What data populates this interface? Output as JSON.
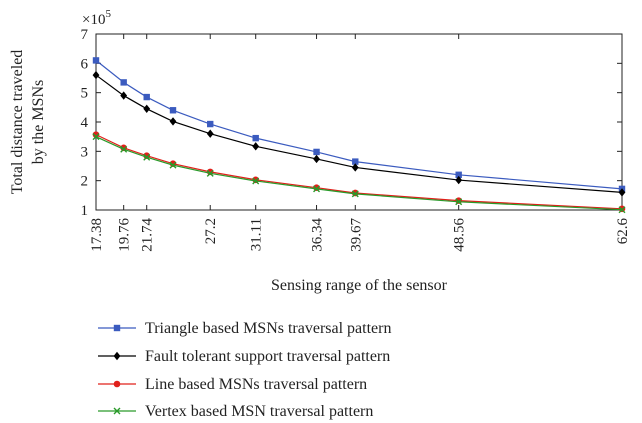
{
  "chart_data": {
    "type": "line",
    "title": "",
    "xlabel": "Sensing range of the sensor",
    "ylabel_lines": [
      "Total distance traveled",
      "by the MSNs"
    ],
    "y_multiplier_label": "×10",
    "y_multiplier_exponent": "5",
    "xlim": [
      17.38,
      62.6
    ],
    "ylim": [
      1,
      7
    ],
    "x_ticks": [
      17.38,
      19.76,
      21.74,
      27.2,
      31.11,
      36.34,
      39.67,
      48.56,
      62.6
    ],
    "x_tick_labels": [
      "17.38",
      "19.76",
      "21.74",
      "27.2",
      "31.11",
      "36.34",
      "39.67",
      "48.56",
      "62.6"
    ],
    "y_ticks": [
      1,
      2,
      3,
      4,
      5,
      6,
      7
    ],
    "y_tick_labels": [
      "1",
      "2",
      "3",
      "4",
      "5",
      "6",
      "7"
    ],
    "grid": false,
    "legend_position": "bottom",
    "series": [
      {
        "name": "Triangle based MSNs traversal pattern",
        "color": "#3b5bbf",
        "marker": "square",
        "x": [
          17.38,
          19.76,
          21.74,
          24.0,
          27.2,
          31.11,
          36.34,
          39.67,
          48.56,
          62.6
        ],
        "y": [
          6.1,
          5.35,
          4.85,
          4.4,
          3.93,
          3.45,
          2.98,
          2.65,
          2.2,
          1.72
        ]
      },
      {
        "name": "Fault tolerant support traversal pattern",
        "color": "#000000",
        "marker": "diamond",
        "x": [
          17.38,
          19.76,
          21.74,
          24.0,
          27.2,
          31.11,
          36.34,
          39.67,
          48.56,
          62.6
        ],
        "y": [
          5.6,
          4.9,
          4.45,
          4.02,
          3.6,
          3.17,
          2.74,
          2.45,
          2.02,
          1.6
        ]
      },
      {
        "name": "Line based MSNs traversal pattern",
        "color": "#e0201b",
        "marker": "circle",
        "x": [
          17.38,
          19.76,
          21.74,
          24.0,
          27.2,
          31.11,
          36.34,
          39.67,
          48.56,
          62.6
        ],
        "y": [
          3.57,
          3.12,
          2.85,
          2.58,
          2.3,
          2.03,
          1.76,
          1.58,
          1.32,
          1.04
        ]
      },
      {
        "name": "Vertex based MSN traversal pattern",
        "color": "#2a9a2a",
        "marker": "x",
        "x": [
          17.38,
          19.76,
          21.74,
          24.0,
          27.2,
          31.11,
          36.34,
          39.67,
          48.56,
          62.6
        ],
        "y": [
          3.5,
          3.07,
          2.8,
          2.53,
          2.25,
          1.99,
          1.72,
          1.55,
          1.28,
          1.01
        ]
      }
    ]
  }
}
